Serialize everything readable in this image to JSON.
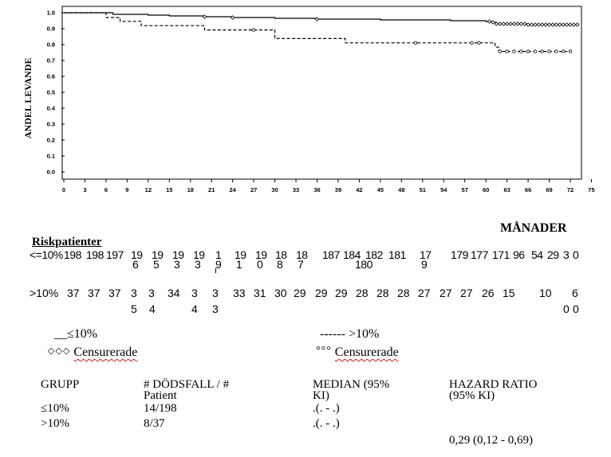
{
  "chart_data": {
    "type": "line",
    "title": "",
    "ylabel": "ANDEL LEVANDE",
    "xlabel": "MÅNADER",
    "ylim": [
      0,
      1
    ],
    "xlim": [
      0,
      75
    ],
    "yticks": [
      "0.0",
      "0.1",
      "0.2",
      "0.3",
      "0.4",
      "0.5",
      "0.6",
      "0.7",
      "0.8",
      "0.9",
      "1.0"
    ],
    "xticks": [
      "0",
      "3",
      "6",
      "9",
      "12",
      "15",
      "18",
      "21",
      "24",
      "27",
      "30",
      "33",
      "36",
      "39",
      "42",
      "45",
      "48",
      "51",
      "54",
      "57",
      "60",
      "63",
      "66",
      "69",
      "72",
      "75"
    ],
    "series": [
      {
        "name": "≤10%",
        "style": "solid",
        "x": [
          0,
          7,
          12,
          15,
          20,
          24,
          30,
          36,
          45,
          55,
          57,
          60,
          60.8,
          61.5,
          62,
          63,
          64,
          65,
          66,
          69,
          72
        ],
        "y": [
          1.0,
          0.99,
          0.985,
          0.98,
          0.975,
          0.97,
          0.965,
          0.96,
          0.955,
          0.95,
          0.95,
          0.945,
          0.94,
          0.93,
          0.93,
          0.93,
          0.93,
          0.93,
          0.925,
          0.925,
          0.925
        ],
        "censored_x": [
          20,
          24,
          36,
          60.5,
          61,
          61.5,
          62,
          62.5,
          63,
          63.5,
          64,
          64.5,
          65,
          65.5,
          66,
          66.5,
          67,
          67.5,
          68,
          68.5,
          69,
          69.5,
          70,
          70.5,
          71,
          71.5,
          72,
          72.5,
          73
        ]
      },
      {
        "name": ">10%",
        "style": "dashed",
        "x": [
          0,
          6,
          8,
          11,
          20,
          24,
          30,
          40,
          60,
          61.3,
          61.8,
          72
        ],
        "y": [
          1.0,
          0.97,
          0.946,
          0.919,
          0.892,
          0.892,
          0.838,
          0.811,
          0.811,
          0.784,
          0.757,
          0.757
        ],
        "censored_x": [
          27,
          50,
          58,
          59,
          62,
          63,
          64,
          65,
          66,
          67,
          68,
          69,
          70,
          71,
          72
        ]
      }
    ]
  },
  "risk_table": {
    "title": "Riskpatienter",
    "row1": {
      "label": "<=10%",
      "top_items": [
        {
          "x": 80,
          "t": "198"
        },
        {
          "x": 108,
          "t": "198"
        },
        {
          "x": 133,
          "t": "197"
        },
        {
          "x": 164,
          "t": "19"
        },
        {
          "x": 190,
          "t": "19"
        },
        {
          "x": 216,
          "t": "19"
        },
        {
          "x": 242,
          "t": "19"
        },
        {
          "x": 270,
          "t": "1"
        },
        {
          "x": 294,
          "t": "19"
        },
        {
          "x": 320,
          "t": "19"
        },
        {
          "x": 345,
          "t": "18"
        },
        {
          "x": 371,
          "t": "18"
        },
        {
          "x": 404,
          "t": "187"
        },
        {
          "x": 430,
          "t": "184"
        },
        {
          "x": 458,
          "t": "182"
        },
        {
          "x": 487,
          "t": "181"
        },
        {
          "x": 526,
          "t": "17"
        },
        {
          "x": 565,
          "t": "179"
        },
        {
          "x": 590,
          "t": "177"
        },
        {
          "x": 617,
          "t": "171"
        },
        {
          "x": 643,
          "t": "96"
        },
        {
          "x": 666,
          "t": "54"
        },
        {
          "x": 686,
          "t": "29"
        },
        {
          "x": 706,
          "t": "3"
        },
        {
          "x": 718,
          "t": "0"
        }
      ],
      "bottom_items": [
        {
          "x": 166,
          "t": "6"
        },
        {
          "x": 192,
          "t": "5"
        },
        {
          "x": 218,
          "t": "3"
        },
        {
          "x": 244,
          "t": "3"
        },
        {
          "x": 270,
          "t": "9"
        },
        {
          "x": 296,
          "t": "1"
        },
        {
          "x": 322,
          "t": "0"
        },
        {
          "x": 347,
          "t": "8"
        },
        {
          "x": 373,
          "t": "7"
        },
        {
          "x": 445,
          "t": "180"
        },
        {
          "x": 528,
          "t": "9"
        }
      ]
    },
    "row2": {
      "label": ">10%",
      "top_items": [
        {
          "x": 84,
          "t": "37"
        },
        {
          "x": 110,
          "t": "37"
        },
        {
          "x": 136,
          "t": "37"
        },
        {
          "x": 164,
          "t": "3"
        },
        {
          "x": 186,
          "t": "3"
        },
        {
          "x": 210,
          "t": "34"
        },
        {
          "x": 240,
          "t": "3"
        },
        {
          "x": 266,
          "t": "3"
        },
        {
          "x": 292,
          "t": "33"
        },
        {
          "x": 318,
          "t": "31"
        },
        {
          "x": 344,
          "t": "30"
        },
        {
          "x": 368,
          "t": "29"
        },
        {
          "x": 395,
          "t": "29"
        },
        {
          "x": 420,
          "t": "29"
        },
        {
          "x": 446,
          "t": "28"
        },
        {
          "x": 472,
          "t": "28"
        },
        {
          "x": 498,
          "t": "28"
        },
        {
          "x": 524,
          "t": "27"
        },
        {
          "x": 551,
          "t": "27"
        },
        {
          "x": 577,
          "t": "27"
        },
        {
          "x": 604,
          "t": "26"
        },
        {
          "x": 630,
          "t": "15"
        },
        {
          "x": 676,
          "t": "10"
        },
        {
          "x": 717,
          "t": "6"
        }
      ],
      "bottom_items": [
        {
          "x": 164,
          "t": "5"
        },
        {
          "x": 187,
          "t": "4"
        },
        {
          "x": 240,
          "t": "4"
        },
        {
          "x": 266,
          "t": "3"
        },
        {
          "x": 706,
          "t": "0"
        },
        {
          "x": 718,
          "t": "0"
        }
      ]
    }
  },
  "legend": {
    "le10_line": "≤10%",
    "le10_prefix": "__",
    "gt10_line": "------ >10%",
    "le10_censored": "Censurerade",
    "le10_censored_marks": "◇◇◇",
    "gt10_censored": "Censurerade",
    "gt10_censored_marks": "°°°"
  },
  "summary_table": {
    "headers": {
      "group": "GRUPP",
      "deaths": "# DÖDSFALL / #",
      "deaths2": "Patient",
      "median": "MEDIAN (95%",
      "median2": "KI)",
      "hazard": "HAZARD RATIO",
      "hazard2": "(95% KI)"
    },
    "rows": [
      {
        "group": "≤10%",
        "deaths": "14/198",
        "median": ".(. - .)"
      },
      {
        "group": ">10%",
        "deaths": "8/37",
        "median": ".(. - .)"
      }
    ],
    "hazard_ratio": "0,29 (0,12 - 0,69)"
  }
}
